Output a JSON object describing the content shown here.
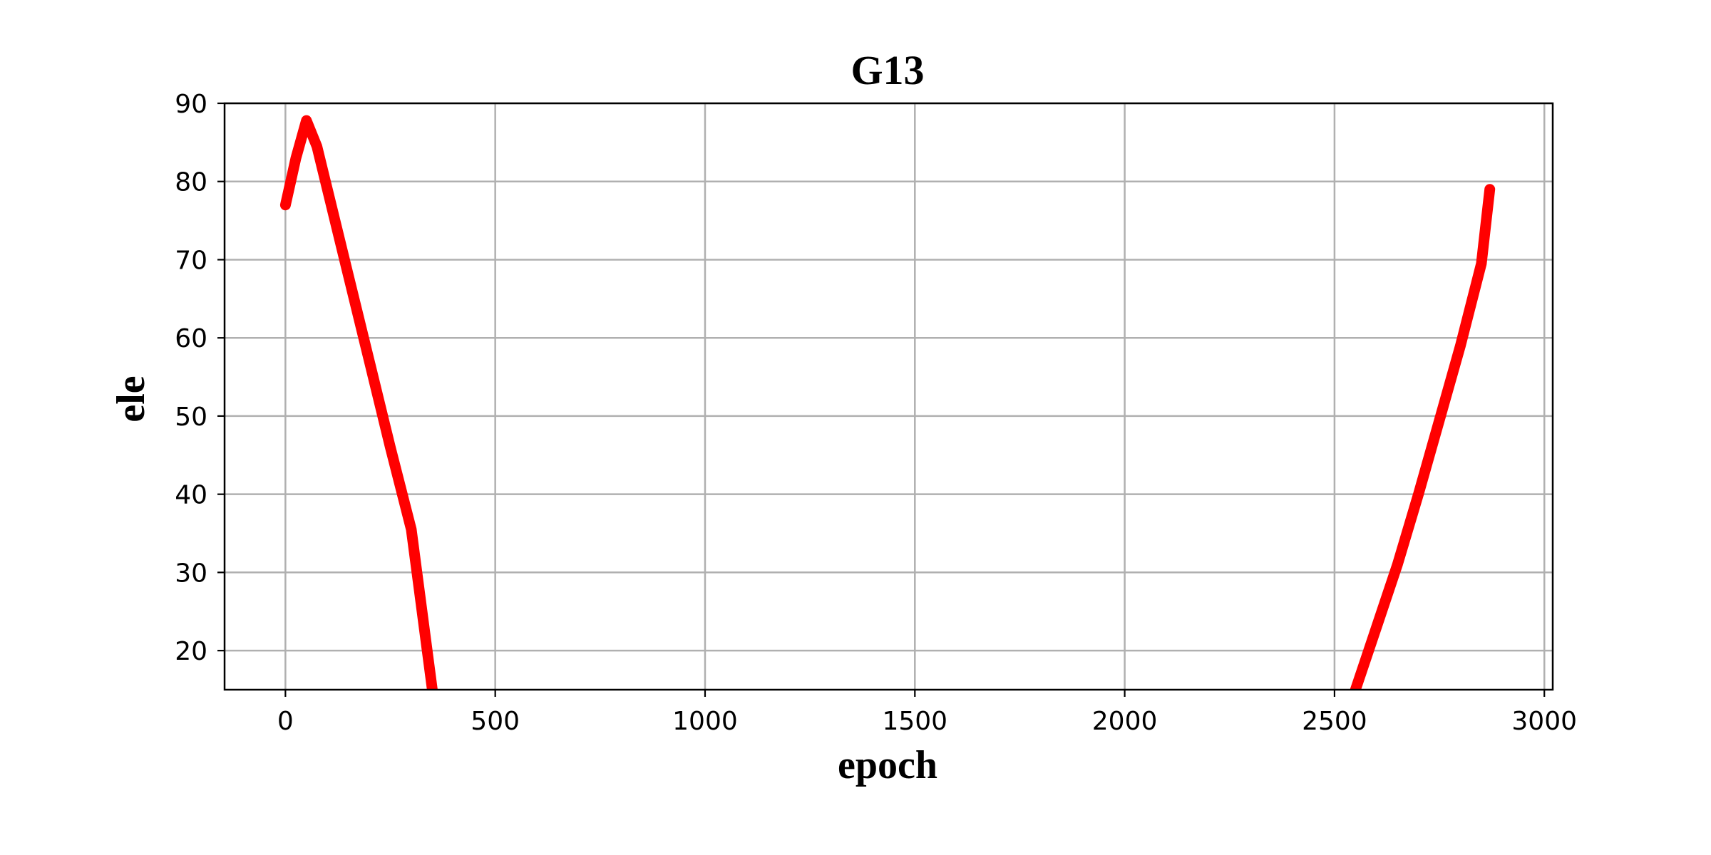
{
  "chart_data": {
    "type": "scatter",
    "title": "G13",
    "xlabel": "epoch",
    "ylabel": "ele",
    "xlim": [
      -145,
      3020
    ],
    "ylim": [
      15,
      90
    ],
    "xticks": [
      0,
      500,
      1000,
      1500,
      2000,
      2500,
      3000
    ],
    "yticks": [
      20,
      30,
      40,
      50,
      60,
      70,
      80,
      90
    ],
    "xtick_labels": [
      "0",
      "500",
      "1000",
      "1500",
      "2000",
      "2500",
      "3000"
    ],
    "ytick_labels": [
      "20",
      "30",
      "40",
      "50",
      "60",
      "70",
      "80",
      "90"
    ],
    "grid": true,
    "series_color": "#ff0000",
    "series": [
      {
        "segments": [
          {
            "x": [
              0,
              25,
              50,
              75,
              100,
              150,
              200,
              250,
              300,
              350
            ],
            "y": [
              77,
              83,
              87.8,
              84.5,
              79,
              68,
              57,
              46,
              35.5,
              15
            ]
          },
          {
            "x": [
              2550,
              2600,
              2650,
              2700,
              2750,
              2800,
              2850,
              2870
            ],
            "y": [
              15,
              23,
              31,
              40,
              49.5,
              59,
              69.5,
              79
            ]
          }
        ]
      }
    ]
  }
}
